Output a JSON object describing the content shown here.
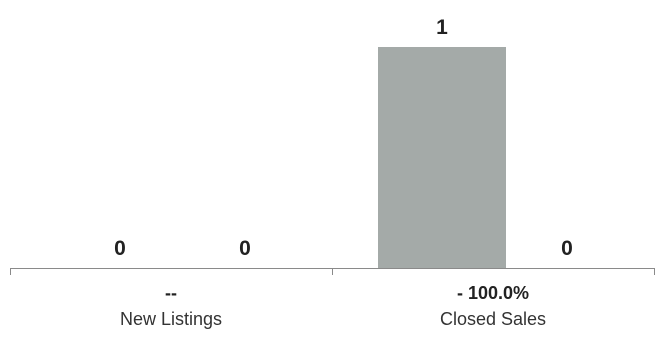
{
  "chart_data": {
    "type": "bar",
    "categories": [
      "New Listings",
      "Closed Sales"
    ],
    "series": [
      {
        "values": [
          0,
          1
        ]
      },
      {
        "values": [
          0,
          0
        ]
      }
    ],
    "change_labels": [
      "--",
      "- 100.0%"
    ],
    "bar_colors": [
      "#a4aaa8",
      "#6a8f2b"
    ],
    "ylim": [
      0,
      1
    ],
    "grid": false,
    "legend": "none",
    "title": "",
    "xlabel": "",
    "ylabel": ""
  }
}
